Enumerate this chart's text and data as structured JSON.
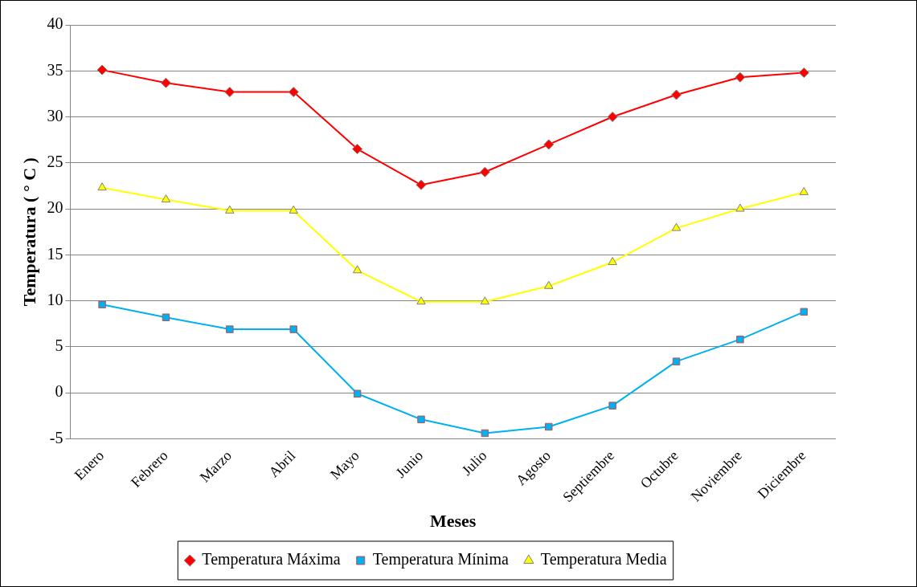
{
  "chart_data": {
    "type": "line",
    "xlabel": "Meses",
    "ylabel": "Temperatura ( ° C )",
    "categories": [
      "Enero",
      "Febrero",
      "Marzo",
      "Abril",
      "Mayo",
      "Junio",
      "Julio",
      "Agosto",
      "Septiembre",
      "Octubre",
      "Noviembre",
      "Diciembre"
    ],
    "series": [
      {
        "name": "Temperatura Máxima",
        "color": "#ff0000",
        "marker": "diamond",
        "values": [
          35.1,
          33.7,
          32.7,
          32.7,
          26.5,
          22.6,
          24.0,
          27.0,
          30.0,
          32.4,
          34.3,
          34.8
        ]
      },
      {
        "name": "Temperatura Mínima",
        "color": "#00b0f0",
        "marker": "square",
        "values": [
          9.6,
          8.2,
          6.9,
          6.9,
          -0.1,
          -2.9,
          -4.4,
          -3.7,
          -1.4,
          3.4,
          5.8,
          8.8
        ]
      },
      {
        "name": "Temperatura Media",
        "color": "#ffff00",
        "marker": "triangle",
        "values": [
          22.3,
          21.0,
          19.8,
          19.8,
          13.3,
          9.9,
          9.9,
          11.6,
          14.2,
          17.9,
          20.0,
          21.8
        ]
      }
    ],
    "ylim": [
      -5,
      40
    ],
    "yticks": [
      -5,
      0,
      5,
      10,
      15,
      20,
      25,
      30,
      35,
      40
    ],
    "grid": "y",
    "legend": "bottom",
    "line_style": "solid"
  }
}
